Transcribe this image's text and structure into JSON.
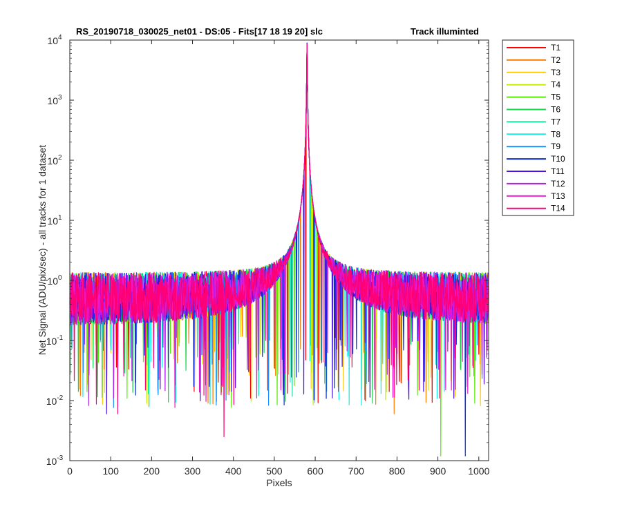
{
  "chart_data": {
    "type": "line",
    "title": "RS_20190718_030025_net01 - DS:05 - Fits[17  18  19  20]   slc",
    "title_right": "Track illuminted",
    "xlabel": "Pixels",
    "ylabel": "Net Signal (ADU/pix/sec) - all tracks for 1 dataset",
    "xlim": [
      0,
      1024
    ],
    "ylim": [
      0.001,
      10000
    ],
    "yscale": "log",
    "grid": false,
    "legend_placement": "outside-top-right",
    "x_ticks": [
      "0",
      "100",
      "200",
      "300",
      "400",
      "500",
      "600",
      "700",
      "800",
      "900",
      "1000"
    ],
    "y_ticks": [
      {
        "base": "10",
        "exp": "-3"
      },
      {
        "base": "10",
        "exp": "-2"
      },
      {
        "base": "10",
        "exp": "-1"
      },
      {
        "base": "10",
        "exp": "0"
      },
      {
        "base": "10",
        "exp": "1"
      },
      {
        "base": "10",
        "exp": "2"
      },
      {
        "base": "10",
        "exp": "3"
      },
      {
        "base": "10",
        "exp": "4"
      }
    ],
    "peak_x": 580,
    "peak_y": 9000,
    "baseline_y": 0.6,
    "series": [
      {
        "name": "T1",
        "color": "#ff0000"
      },
      {
        "name": "T2",
        "color": "#ff7f00"
      },
      {
        "name": "T3",
        "color": "#ffcc00"
      },
      {
        "name": "T4",
        "color": "#c6f000"
      },
      {
        "name": "T5",
        "color": "#55ee00"
      },
      {
        "name": "T6",
        "color": "#14d94a"
      },
      {
        "name": "T7",
        "color": "#16e8a6"
      },
      {
        "name": "T8",
        "color": "#17ece6"
      },
      {
        "name": "T9",
        "color": "#1a90ff"
      },
      {
        "name": "T10",
        "color": "#0b2bd6"
      },
      {
        "name": "T11",
        "color": "#4c12ea"
      },
      {
        "name": "T12",
        "color": "#b21cf0"
      },
      {
        "name": "T13",
        "color": "#ea18c9"
      },
      {
        "name": "T14",
        "color": "#ff0077"
      }
    ],
    "notable_dips": [
      {
        "x": 377,
        "y": 0.0025,
        "series": "T14"
      },
      {
        "x": 907,
        "y": 0.0012,
        "series": "T5"
      },
      {
        "x": 967,
        "y": 0.0012,
        "series": "T10"
      },
      {
        "x": 793,
        "y": 0.006,
        "series": "T2"
      },
      {
        "x": 90,
        "y": 0.006,
        "series": "T11"
      },
      {
        "x": 117,
        "y": 0.006,
        "series": "T14"
      }
    ]
  }
}
